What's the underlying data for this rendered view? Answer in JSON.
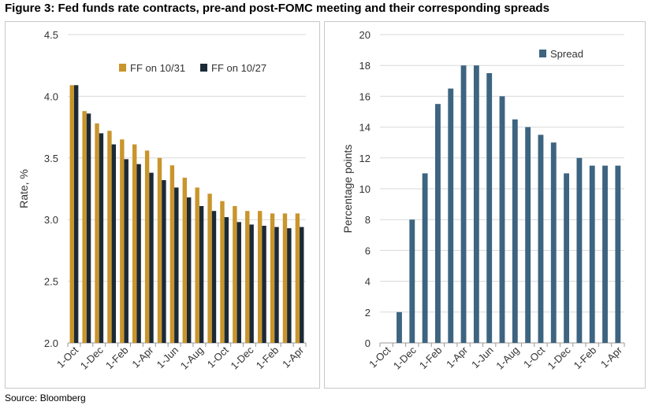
{
  "figure": {
    "title": "Figure 3: Fed funds rate contracts, pre-and post-FOMC meeting and their corresponding spreads",
    "source": "Source: Bloomberg"
  },
  "chart_data": [
    {
      "type": "bar",
      "title": "",
      "xlabel": "",
      "ylabel": "Rate, %",
      "ylim": [
        2.0,
        4.5
      ],
      "yticks": [
        "2.0",
        "2.5",
        "3.0",
        "3.5",
        "4.0",
        "4.5"
      ],
      "ytick_values": [
        2.0,
        2.5,
        3.0,
        3.5,
        4.0,
        4.5
      ],
      "categories": [
        "Oct",
        "Nov",
        "Dec",
        "Jan",
        "Feb",
        "Mar",
        "Apr",
        "May",
        "Jun",
        "Jul",
        "Aug",
        "Sep",
        "Oct",
        "Nov",
        "Dec",
        "Jan",
        "Feb",
        "Mar",
        "Apr"
      ],
      "xtick_labels": [
        "1-Oct",
        "1-Dec",
        "1-Feb",
        "1-Apr",
        "1-Jun",
        "1-Aug",
        "1-Oct",
        "1-Dec",
        "1-Feb",
        "1-Apr"
      ],
      "legend_position": "top-center",
      "series": [
        {
          "name": "FF on 10/31",
          "color": "#c9952c",
          "values": [
            4.09,
            3.88,
            3.78,
            3.72,
            3.65,
            3.61,
            3.56,
            3.5,
            3.44,
            3.34,
            3.26,
            3.21,
            3.15,
            3.11,
            3.07,
            3.07,
            3.05,
            3.05,
            3.05
          ]
        },
        {
          "name": "FF on 10/27",
          "color": "#1c2a36",
          "values": [
            4.09,
            3.86,
            3.7,
            3.61,
            3.49,
            3.45,
            3.38,
            3.32,
            3.26,
            3.18,
            3.11,
            3.07,
            3.02,
            2.98,
            2.96,
            2.95,
            2.94,
            2.93,
            2.94
          ]
        }
      ]
    },
    {
      "type": "bar",
      "title": "",
      "xlabel": "",
      "ylabel": "Percentage points",
      "ylim": [
        0,
        20
      ],
      "yticks": [
        "0",
        "2",
        "4",
        "6",
        "8",
        "10",
        "12",
        "14",
        "16",
        "18",
        "20"
      ],
      "ytick_values": [
        0,
        2,
        4,
        6,
        8,
        10,
        12,
        14,
        16,
        18,
        20
      ],
      "categories": [
        "Oct",
        "Nov",
        "Dec",
        "Jan",
        "Feb",
        "Mar",
        "Apr",
        "May",
        "Jun",
        "Jul",
        "Aug",
        "Sep",
        "Oct",
        "Nov",
        "Dec",
        "Jan",
        "Feb",
        "Mar",
        "Apr"
      ],
      "xtick_labels": [
        "1-Oct",
        "1-Dec",
        "1-Feb",
        "1-Apr",
        "1-Jun",
        "1-Aug",
        "1-Oct",
        "1-Dec",
        "1-Feb",
        "1-Apr"
      ],
      "legend_position": "top-right",
      "series": [
        {
          "name": "Spread",
          "color": "#3d6480",
          "values": [
            0,
            2,
            8,
            11,
            15.5,
            16.5,
            18,
            18,
            17.5,
            16,
            14.5,
            14,
            13.5,
            13,
            11,
            12,
            11.5,
            11.5,
            11.5
          ]
        }
      ]
    }
  ]
}
